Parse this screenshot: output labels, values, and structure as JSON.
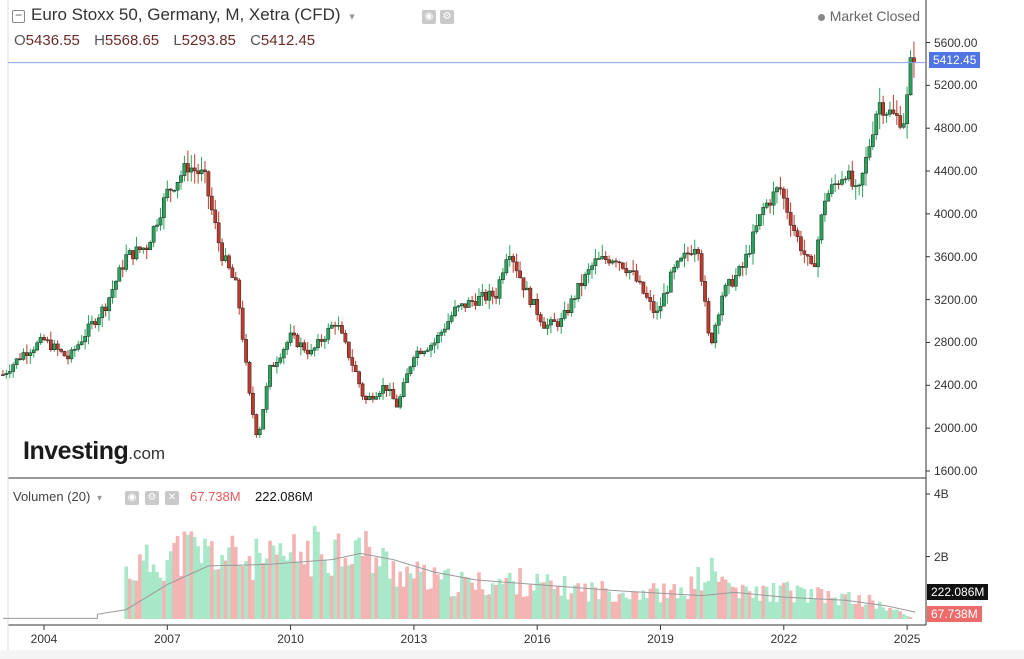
{
  "header": {
    "title": "Euro Stoxx 50, Germany, M, Xetra (CFD)",
    "ohlc": [
      {
        "label": "O",
        "value": "5436.55"
      },
      {
        "label": "H",
        "value": "5568.65"
      },
      {
        "label": "L",
        "value": "5293.85"
      },
      {
        "label": "C",
        "value": "5412.45"
      }
    ],
    "status": "Market Closed"
  },
  "volume_panel": {
    "label": "Volumen (20)",
    "current_volume": "67.738M",
    "average_volume": "222.086M"
  },
  "logo": {
    "brand": "Investing",
    "suffix": ".com"
  },
  "price_tag": "5412.45",
  "colors": {
    "up": "#26a65b",
    "down": "#c0392b",
    "vol_up": "#a8e8c8",
    "vol_down": "#f4b4b4",
    "ma_line": "#9a9a9a",
    "price_tag_bg": "#4f74e3"
  },
  "chart_data": [
    {
      "type": "candlestick",
      "title": "Euro Stoxx 50, Germany, M, Xetra (CFD)",
      "interval": "monthly",
      "x_ticks": [
        "2004",
        "2007",
        "2010",
        "2013",
        "2016",
        "2019",
        "2022",
        "2025"
      ],
      "y_ticks": [
        "1600.00",
        "2000.00",
        "2400.00",
        "2800.00",
        "3200.00",
        "3600.00",
        "4000.00",
        "4400.00",
        "4800.00",
        "5200.00",
        "5600.00"
      ],
      "ylim": [
        1600,
        5600
      ],
      "last_close": 5412.45,
      "approx_closes": [
        {
          "date": "2003.0",
          "value": 2500
        },
        {
          "date": "2003.5",
          "value": 2700
        },
        {
          "date": "2004.0",
          "value": 2820
        },
        {
          "date": "2004.6",
          "value": 2650
        },
        {
          "date": "2005.0",
          "value": 2880
        },
        {
          "date": "2005.5",
          "value": 3150
        },
        {
          "date": "2006.0",
          "value": 3600
        },
        {
          "date": "2006.5",
          "value": 3700
        },
        {
          "date": "2007.0",
          "value": 4200
        },
        {
          "date": "2007.5",
          "value": 4450
        },
        {
          "date": "2007.9",
          "value": 4350
        },
        {
          "date": "2008.3",
          "value": 3650
        },
        {
          "date": "2008.7",
          "value": 3300
        },
        {
          "date": "2009.0",
          "value": 2300
        },
        {
          "date": "2009.2",
          "value": 1900
        },
        {
          "date": "2009.5",
          "value": 2550
        },
        {
          "date": "2010.0",
          "value": 2850
        },
        {
          "date": "2010.5",
          "value": 2700
        },
        {
          "date": "2011.1",
          "value": 3000
        },
        {
          "date": "2011.6",
          "value": 2500
        },
        {
          "date": "2011.8",
          "value": 2250
        },
        {
          "date": "2012.3",
          "value": 2400
        },
        {
          "date": "2012.6",
          "value": 2200
        },
        {
          "date": "2013.0",
          "value": 2700
        },
        {
          "date": "2013.5",
          "value": 2800
        },
        {
          "date": "2014.0",
          "value": 3100
        },
        {
          "date": "2014.5",
          "value": 3200
        },
        {
          "date": "2015.0",
          "value": 3250
        },
        {
          "date": "2015.3",
          "value": 3700
        },
        {
          "date": "2015.7",
          "value": 3300
        },
        {
          "date": "2016.2",
          "value": 2950
        },
        {
          "date": "2016.6",
          "value": 3000
        },
        {
          "date": "2017.0",
          "value": 3300
        },
        {
          "date": "2017.4",
          "value": 3550
        },
        {
          "date": "2017.9",
          "value": 3600
        },
        {
          "date": "2018.3",
          "value": 3450
        },
        {
          "date": "2018.9",
          "value": 3050
        },
        {
          "date": "2019.3",
          "value": 3450
        },
        {
          "date": "2019.9",
          "value": 3750
        },
        {
          "date": "2020.2",
          "value": 2750
        },
        {
          "date": "2020.5",
          "value": 3250
        },
        {
          "date": "2021.0",
          "value": 3500
        },
        {
          "date": "2021.5",
          "value": 4050
        },
        {
          "date": "2021.9",
          "value": 4250
        },
        {
          "date": "2022.3",
          "value": 3800
        },
        {
          "date": "2022.7",
          "value": 3450
        },
        {
          "date": "2023.0",
          "value": 4150
        },
        {
          "date": "2023.5",
          "value": 4400
        },
        {
          "date": "2023.8",
          "value": 4150
        },
        {
          "date": "2024.0",
          "value": 4500
        },
        {
          "date": "2024.3",
          "value": 5050
        },
        {
          "date": "2024.7",
          "value": 4900
        },
        {
          "date": "2024.95",
          "value": 4880
        },
        {
          "date": "2025.1",
          "value": 5450
        },
        {
          "date": "2025.2",
          "value": 5412
        }
      ]
    },
    {
      "type": "bar",
      "title": "Volumen (20)",
      "y_ticks": [
        "2B",
        "4B"
      ],
      "ylim": [
        0,
        4.3
      ],
      "unit": "B",
      "last_volume": "67.738M",
      "moving_average_last": "222.086M",
      "approx_volumes": [
        {
          "date": "2006.0",
          "value": 1.5
        },
        {
          "date": "2006.6",
          "value": 1.8
        },
        {
          "date": "2007.5",
          "value": 2.2
        },
        {
          "date": "2008.5",
          "value": 2.0
        },
        {
          "date": "2009.5",
          "value": 1.8
        },
        {
          "date": "2010.3",
          "value": 2.1
        },
        {
          "date": "2011.5",
          "value": 2.4
        },
        {
          "date": "2012.5",
          "value": 1.6
        },
        {
          "date": "2013.5",
          "value": 1.2
        },
        {
          "date": "2014.5",
          "value": 1.1
        },
        {
          "date": "2015.5",
          "value": 1.2
        },
        {
          "date": "2016.5",
          "value": 1.0
        },
        {
          "date": "2017.5",
          "value": 0.9
        },
        {
          "date": "2018.5",
          "value": 0.9
        },
        {
          "date": "2019.5",
          "value": 0.8
        },
        {
          "date": "2020.2",
          "value": 1.5
        },
        {
          "date": "2021.0",
          "value": 0.8
        },
        {
          "date": "2022.0",
          "value": 0.9
        },
        {
          "date": "2023.0",
          "value": 0.7
        },
        {
          "date": "2024.0",
          "value": 0.6
        },
        {
          "date": "2025.1",
          "value": 0.07
        }
      ],
      "approx_moving_average": [
        {
          "date": "2005.3",
          "value": 0.15
        },
        {
          "date": "2006.0",
          "value": 0.3
        },
        {
          "date": "2007.0",
          "value": 1.1
        },
        {
          "date": "2008.0",
          "value": 1.7
        },
        {
          "date": "2009.5",
          "value": 1.75
        },
        {
          "date": "2011.0",
          "value": 1.9
        },
        {
          "date": "2011.7",
          "value": 2.1
        },
        {
          "date": "2012.5",
          "value": 1.9
        },
        {
          "date": "2013.5",
          "value": 1.5
        },
        {
          "date": "2014.5",
          "value": 1.25
        },
        {
          "date": "2016.0",
          "value": 1.1
        },
        {
          "date": "2018.0",
          "value": 0.9
        },
        {
          "date": "2020.0",
          "value": 0.75
        },
        {
          "date": "2020.8",
          "value": 0.85
        },
        {
          "date": "2022.0",
          "value": 0.7
        },
        {
          "date": "2023.5",
          "value": 0.6
        },
        {
          "date": "2024.5",
          "value": 0.42
        },
        {
          "date": "2025.2",
          "value": 0.22
        }
      ]
    }
  ]
}
